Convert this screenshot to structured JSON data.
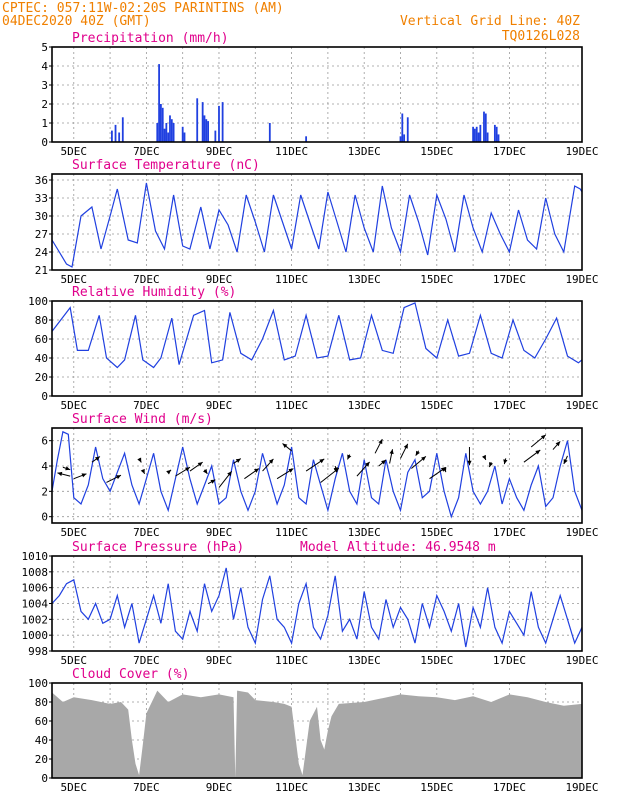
{
  "header": {
    "line1": "CPTEC:  057:11W-02:20S  PARINTINS (AM)",
    "line2": "04DEC2020 40Z (GMT)",
    "right1": "Vertical Grid Line: 40Z",
    "right2": "TQ0126L028"
  },
  "colors": {
    "header": "#f08000",
    "title": "#e0008c",
    "series": "#2040e0",
    "bars": "#2040e0",
    "cloud": "#a8a8a8"
  },
  "chart_data": [
    {
      "id": "precip",
      "type": "bar",
      "title": "Precipitation (mm/h)",
      "xlabels": [
        "5DEC",
        "7DEC",
        "9DEC",
        "11DEC",
        "13DEC",
        "15DEC",
        "17DEC",
        "19DEC"
      ],
      "xlim": [
        4.4,
        19.0
      ],
      "ylim": [
        0,
        5
      ],
      "yticks": [
        0,
        1,
        2,
        3,
        4,
        5
      ],
      "x": [
        6.05,
        6.15,
        6.25,
        6.35,
        7.3,
        7.35,
        7.4,
        7.45,
        7.5,
        7.55,
        7.6,
        7.65,
        7.7,
        7.75,
        8.0,
        8.05,
        8.4,
        8.55,
        8.6,
        8.65,
        8.7,
        8.9,
        9.0,
        9.1,
        10.4,
        11.4,
        14.0,
        14.05,
        14.1,
        14.2,
        16.0,
        16.05,
        16.1,
        16.15,
        16.2,
        16.3,
        16.35,
        16.4,
        16.6,
        16.65,
        16.7
      ],
      "values": [
        0.6,
        0.9,
        0.5,
        1.3,
        1.0,
        4.1,
        2.0,
        1.8,
        0.7,
        1.0,
        0.5,
        1.4,
        1.2,
        1.0,
        0.8,
        0.5,
        2.3,
        2.1,
        1.4,
        1.2,
        1.1,
        0.6,
        1.9,
        2.1,
        1.0,
        0.3,
        0.3,
        1.5,
        0.4,
        1.3,
        0.8,
        0.7,
        0.8,
        0.5,
        0.9,
        1.6,
        1.5,
        0.5,
        0.9,
        0.8,
        0.4
      ]
    },
    {
      "id": "temp",
      "type": "line",
      "title": "Surface Temperature (nC)",
      "xlabels": [
        "5DEC",
        "7DEC",
        "9DEC",
        "11DEC",
        "13DEC",
        "15DEC",
        "17DEC",
        "19DEC"
      ],
      "xlim": [
        4.4,
        19.0
      ],
      "ylim": [
        21,
        37
      ],
      "yticks": [
        21,
        24,
        27,
        30,
        33,
        36
      ],
      "x": [
        4.4,
        4.6,
        4.8,
        4.95,
        5.2,
        5.5,
        5.75,
        6.0,
        6.2,
        6.5,
        6.75,
        7.0,
        7.25,
        7.5,
        7.75,
        8.0,
        8.2,
        8.5,
        8.75,
        9.0,
        9.25,
        9.5,
        9.75,
        10.0,
        10.25,
        10.5,
        10.75,
        11.0,
        11.25,
        11.5,
        11.75,
        12.0,
        12.25,
        12.5,
        12.75,
        13.0,
        13.25,
        13.5,
        13.75,
        14.0,
        14.25,
        14.5,
        14.75,
        15.0,
        15.25,
        15.5,
        15.75,
        16.0,
        16.25,
        16.5,
        16.75,
        17.0,
        17.25,
        17.5,
        17.75,
        18.0,
        18.25,
        18.5,
        18.8,
        18.95,
        19.0
      ],
      "values": [
        26,
        24,
        22,
        21.5,
        30,
        31.5,
        24.5,
        30,
        34.5,
        26,
        25.5,
        35.5,
        27.5,
        24.5,
        33.5,
        25,
        24.5,
        31.5,
        24.5,
        31,
        28.5,
        24,
        33.5,
        29,
        24,
        33.5,
        29,
        24.5,
        33.5,
        29,
        24.5,
        34,
        29,
        24,
        33.5,
        28,
        24,
        35,
        28,
        24,
        33.5,
        29,
        23.5,
        33.5,
        29.5,
        24,
        33.5,
        28,
        24,
        30.5,
        27,
        24,
        31,
        26,
        24.5,
        33,
        27,
        24,
        35,
        34.5,
        34
      ]
    },
    {
      "id": "rh",
      "type": "line",
      "title": "Relative Humidity (%)",
      "xlabels": [
        "5DEC",
        "7DEC",
        "9DEC",
        "11DEC",
        "13DEC",
        "15DEC",
        "17DEC",
        "19DEC"
      ],
      "xlim": [
        4.4,
        19.0
      ],
      "ylim": [
        0,
        100
      ],
      "yticks": [
        0,
        20,
        40,
        60,
        80,
        100
      ],
      "x": [
        4.4,
        4.6,
        4.9,
        5.1,
        5.4,
        5.7,
        5.9,
        6.2,
        6.4,
        6.7,
        6.9,
        7.2,
        7.4,
        7.7,
        7.9,
        8.3,
        8.6,
        8.8,
        9.1,
        9.3,
        9.6,
        9.9,
        10.2,
        10.5,
        10.8,
        11.1,
        11.4,
        11.7,
        12.0,
        12.3,
        12.6,
        12.9,
        13.2,
        13.5,
        13.8,
        14.1,
        14.4,
        14.7,
        15.0,
        15.3,
        15.6,
        15.9,
        16.2,
        16.5,
        16.8,
        17.1,
        17.4,
        17.7,
        18.0,
        18.3,
        18.6,
        18.9,
        19.0
      ],
      "values": [
        68,
        78,
        93,
        48,
        48,
        85,
        40,
        30,
        38,
        85,
        38,
        30,
        40,
        82,
        33,
        85,
        90,
        35,
        38,
        88,
        45,
        38,
        60,
        90,
        38,
        42,
        85,
        40,
        42,
        85,
        38,
        40,
        85,
        48,
        45,
        93,
        98,
        50,
        40,
        80,
        42,
        45,
        85,
        45,
        40,
        80,
        48,
        40,
        60,
        82,
        42,
        35,
        38
      ]
    },
    {
      "id": "wind",
      "type": "line",
      "title": "Surface Wind (m/s)",
      "xlabels": [
        "5DEC",
        "7DEC",
        "9DEC",
        "11DEC",
        "13DEC",
        "15DEC",
        "17DEC",
        "19DEC"
      ],
      "xlim": [
        4.4,
        19.0
      ],
      "ylim": [
        -0.5,
        7
      ],
      "yticks": [
        0,
        2,
        4,
        6
      ],
      "x": [
        4.4,
        4.55,
        4.7,
        4.85,
        5.0,
        5.2,
        5.4,
        5.6,
        5.8,
        6.0,
        6.2,
        6.4,
        6.6,
        6.8,
        7.0,
        7.2,
        7.4,
        7.6,
        7.8,
        8.0,
        8.2,
        8.4,
        8.6,
        8.8,
        9.0,
        9.2,
        9.4,
        9.6,
        9.8,
        10.0,
        10.2,
        10.4,
        10.6,
        10.8,
        11.0,
        11.2,
        11.4,
        11.6,
        11.8,
        12.0,
        12.2,
        12.4,
        12.6,
        12.8,
        13.0,
        13.2,
        13.4,
        13.6,
        13.8,
        14.0,
        14.2,
        14.4,
        14.6,
        14.8,
        15.0,
        15.2,
        15.4,
        15.6,
        15.8,
        16.0,
        16.2,
        16.4,
        16.6,
        16.8,
        17.0,
        17.2,
        17.4,
        17.6,
        17.8,
        18.0,
        18.2,
        18.4,
        18.6,
        18.8,
        19.0
      ],
      "values": [
        2.0,
        4.5,
        6.7,
        6.5,
        1.5,
        1.0,
        2.5,
        5.5,
        3.0,
        2.0,
        3.5,
        5.0,
        2.5,
        1.0,
        3.0,
        5.0,
        2.0,
        0.5,
        3.0,
        5.5,
        3.0,
        1.0,
        2.5,
        4.0,
        1.0,
        1.5,
        4.5,
        2.0,
        0.5,
        2.0,
        5.0,
        3.0,
        1.0,
        2.5,
        5.5,
        1.5,
        1.0,
        4.5,
        2.5,
        0.5,
        3.0,
        5.0,
        2.0,
        1.0,
        4.5,
        1.5,
        1.0,
        4.5,
        2.0,
        0.5,
        3.5,
        4.5,
        1.5,
        2.0,
        5.0,
        2.0,
        0.0,
        1.5,
        5.0,
        2.0,
        1.0,
        2.0,
        4.0,
        1.0,
        3.0,
        1.5,
        0.5,
        2.5,
        4.0,
        0.8,
        1.5,
        4.0,
        6.0,
        2.0,
        0.5
      ]
    },
    {
      "id": "pressure",
      "type": "line",
      "title": "Surface Pressure (hPa)",
      "annotation": "Model Altitude: 46.9548 m",
      "xlabels": [
        "5DEC",
        "7DEC",
        "9DEC",
        "11DEC",
        "13DEC",
        "15DEC",
        "17DEC",
        "19DEC"
      ],
      "xlim": [
        4.4,
        19.0
      ],
      "ylim": [
        998,
        1010
      ],
      "yticks": [
        998,
        1000,
        1002,
        1004,
        1006,
        1008,
        1010
      ],
      "x": [
        4.4,
        4.6,
        4.8,
        5.0,
        5.2,
        5.4,
        5.6,
        5.8,
        6.0,
        6.2,
        6.4,
        6.6,
        6.8,
        7.0,
        7.2,
        7.4,
        7.6,
        7.8,
        8.0,
        8.2,
        8.4,
        8.6,
        8.8,
        9.0,
        9.2,
        9.4,
        9.6,
        9.8,
        10.0,
        10.2,
        10.4,
        10.6,
        10.8,
        11.0,
        11.2,
        11.4,
        11.6,
        11.8,
        12.0,
        12.2,
        12.4,
        12.6,
        12.8,
        13.0,
        13.2,
        13.4,
        13.6,
        13.8,
        14.0,
        14.2,
        14.4,
        14.6,
        14.8,
        15.0,
        15.2,
        15.4,
        15.6,
        15.8,
        16.0,
        16.2,
        16.4,
        16.6,
        16.8,
        17.0,
        17.2,
        17.4,
        17.6,
        17.8,
        18.0,
        18.2,
        18.4,
        18.6,
        18.8,
        19.0
      ],
      "values": [
        1004,
        1005,
        1006.5,
        1007,
        1003,
        1002,
        1004,
        1001.5,
        1002,
        1005,
        1001,
        1004,
        999,
        1002,
        1005,
        1001.5,
        1006.5,
        1000.5,
        999.5,
        1003,
        1000.5,
        1006.5,
        1003,
        1005,
        1008.5,
        1002,
        1006,
        1001,
        999,
        1004.5,
        1007.5,
        1002,
        1001,
        999,
        1004,
        1006.5,
        1001,
        999.5,
        1002.5,
        1007.5,
        1000.5,
        1002,
        999.5,
        1005.5,
        1001,
        999.5,
        1004.5,
        1001,
        1003.5,
        1002,
        999,
        1004,
        1001,
        1005,
        1003,
        1000.5,
        1004,
        998.5,
        1003.5,
        1001,
        1006,
        1001,
        999,
        1003,
        1001.5,
        1000,
        1005.5,
        1001,
        999,
        1002,
        1005,
        1002,
        999,
        1001
      ]
    },
    {
      "id": "cloud",
      "type": "area",
      "title": "Cloud Cover (%)",
      "xlabels": [
        "5DEC",
        "7DEC",
        "9DEC",
        "11DEC",
        "13DEC",
        "15DEC",
        "17DEC",
        "19DEC"
      ],
      "xlim": [
        4.4,
        19.0
      ],
      "ylim": [
        0,
        100
      ],
      "yticks": [
        0,
        20,
        40,
        60,
        80,
        100
      ],
      "x": [
        4.4,
        4.7,
        5.0,
        5.5,
        6.0,
        6.3,
        6.5,
        6.6,
        6.7,
        6.8,
        6.9,
        7.0,
        7.3,
        7.6,
        8.0,
        8.5,
        9.0,
        9.4,
        9.45,
        9.5,
        9.8,
        10.0,
        10.5,
        10.8,
        11.0,
        11.1,
        11.2,
        11.3,
        11.5,
        11.7,
        11.8,
        11.9,
        12.0,
        12.1,
        12.3,
        13.0,
        13.5,
        14.0,
        14.5,
        15.0,
        15.5,
        16.0,
        16.5,
        17.0,
        17.5,
        18.0,
        18.5,
        19.0
      ],
      "values": [
        90,
        80,
        85,
        82,
        78,
        80,
        72,
        40,
        15,
        3,
        35,
        68,
        92,
        80,
        88,
        85,
        88,
        85,
        0,
        92,
        90,
        82,
        80,
        78,
        75,
        45,
        15,
        3,
        60,
        75,
        40,
        30,
        50,
        65,
        78,
        80,
        84,
        88,
        86,
        85,
        82,
        86,
        80,
        88,
        85,
        80,
        76,
        78
      ]
    }
  ]
}
